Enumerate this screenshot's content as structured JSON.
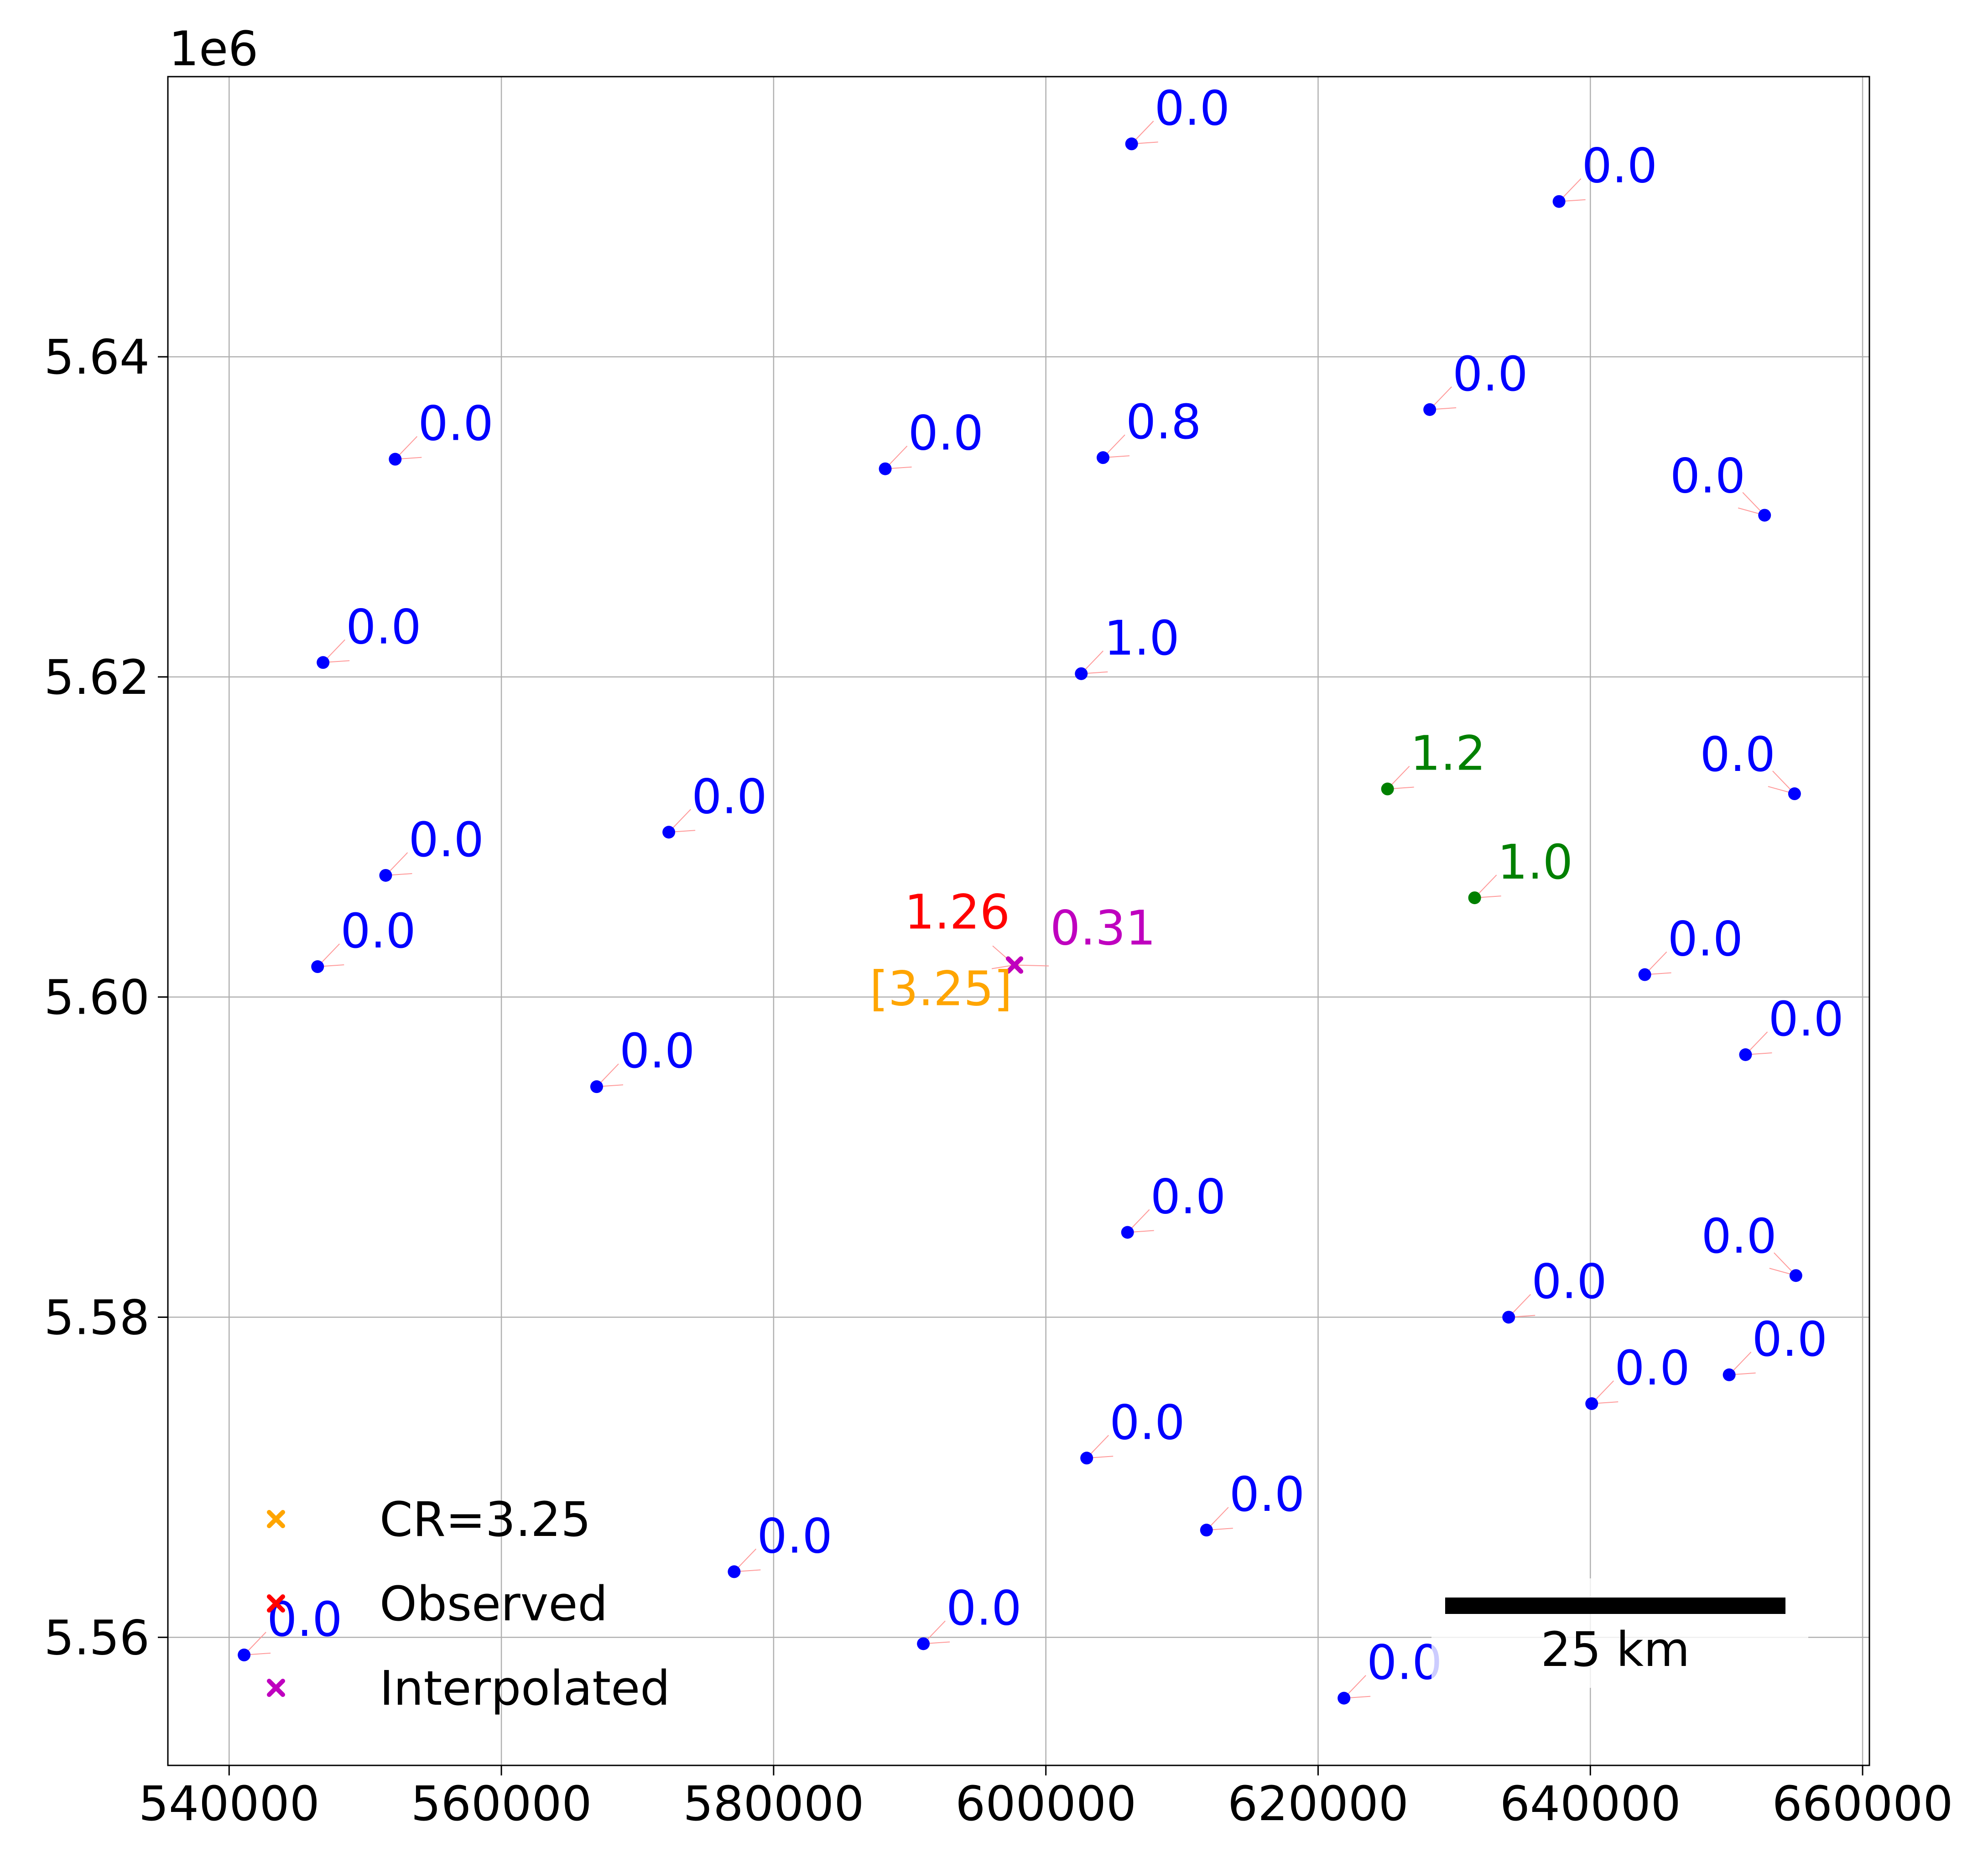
{
  "chart_data": {
    "type": "scatter",
    "title": "",
    "xlabel": "",
    "ylabel": "",
    "y_offset_label": "1e6",
    "xlim": [
      535500,
      660500
    ],
    "ylim": [
      5552000,
      5657500
    ],
    "grid": true,
    "x_ticks": [
      540000,
      560000,
      580000,
      600000,
      620000,
      640000,
      660000
    ],
    "x_tick_labels": [
      "540000",
      "560000",
      "580000",
      "600000",
      "620000",
      "640000",
      "660000"
    ],
    "y_ticks": [
      5560000,
      5580000,
      5600000,
      5620000,
      5640000
    ],
    "y_tick_labels": [
      "5.56",
      "5.58",
      "5.60",
      "5.62",
      "5.64"
    ],
    "colors": {
      "zero_station": "#0000ff",
      "positive_station": "#008000",
      "observed": "#ff0000",
      "interpolated": "#bf00bf",
      "cr": "#ffa500",
      "leader": "#ff9999"
    },
    "stations": [
      {
        "x": 606300,
        "y": 5653300,
        "label": "0.0",
        "color": "#0000ff",
        "side": "right"
      },
      {
        "x": 637700,
        "y": 5649700,
        "label": "0.0",
        "color": "#0000ff",
        "side": "right"
      },
      {
        "x": 628200,
        "y": 5636700,
        "label": "0.0",
        "color": "#0000ff",
        "side": "right"
      },
      {
        "x": 552200,
        "y": 5633600,
        "label": "0.0",
        "color": "#0000ff",
        "side": "right"
      },
      {
        "x": 588200,
        "y": 5633000,
        "label": "0.0",
        "color": "#0000ff",
        "side": "right"
      },
      {
        "x": 604200,
        "y": 5633700,
        "label": "0.8",
        "color": "#0000ff",
        "side": "right"
      },
      {
        "x": 652800,
        "y": 5630100,
        "label": "0.0",
        "color": "#0000ff",
        "side": "left"
      },
      {
        "x": 546900,
        "y": 5620900,
        "label": "0.0",
        "color": "#0000ff",
        "side": "right"
      },
      {
        "x": 602600,
        "y": 5620200,
        "label": "1.0",
        "color": "#0000ff",
        "side": "right"
      },
      {
        "x": 625100,
        "y": 5613000,
        "label": "1.2",
        "color": "#008000",
        "side": "right"
      },
      {
        "x": 655000,
        "y": 5612700,
        "label": "0.0",
        "color": "#0000ff",
        "side": "left"
      },
      {
        "x": 572300,
        "y": 5610300,
        "label": "0.0",
        "color": "#0000ff",
        "side": "right"
      },
      {
        "x": 551500,
        "y": 5607600,
        "label": "0.0",
        "color": "#0000ff",
        "side": "right"
      },
      {
        "x": 631500,
        "y": 5606200,
        "label": "1.0",
        "color": "#008000",
        "side": "right"
      },
      {
        "x": 546500,
        "y": 5601900,
        "label": "0.0",
        "color": "#0000ff",
        "side": "right"
      },
      {
        "x": 644000,
        "y": 5601400,
        "label": "0.0",
        "color": "#0000ff",
        "side": "right"
      },
      {
        "x": 651400,
        "y": 5596400,
        "label": "0.0",
        "color": "#0000ff",
        "side": "right"
      },
      {
        "x": 567000,
        "y": 5594400,
        "label": "0.0",
        "color": "#0000ff",
        "side": "right"
      },
      {
        "x": 606000,
        "y": 5585300,
        "label": "0.0",
        "color": "#0000ff",
        "side": "right"
      },
      {
        "x": 655100,
        "y": 5582600,
        "label": "0.0",
        "color": "#0000ff",
        "side": "left"
      },
      {
        "x": 634000,
        "y": 5580000,
        "label": "0.0",
        "color": "#0000ff",
        "side": "right"
      },
      {
        "x": 650200,
        "y": 5576400,
        "label": "0.0",
        "color": "#0000ff",
        "side": "right"
      },
      {
        "x": 640100,
        "y": 5574600,
        "label": "0.0",
        "color": "#0000ff",
        "side": "right"
      },
      {
        "x": 603000,
        "y": 5571200,
        "label": "0.0",
        "color": "#0000ff",
        "side": "right"
      },
      {
        "x": 611800,
        "y": 5566700,
        "label": "0.0",
        "color": "#0000ff",
        "side": "right"
      },
      {
        "x": 577100,
        "y": 5564100,
        "label": "0.0",
        "color": "#0000ff",
        "side": "right"
      },
      {
        "x": 591000,
        "y": 5559600,
        "label": "0.0",
        "color": "#0000ff",
        "side": "right"
      },
      {
        "x": 541100,
        "y": 5558900,
        "label": "0.0",
        "color": "#0000ff",
        "side": "right"
      },
      {
        "x": 621900,
        "y": 5556200,
        "label": "0.0",
        "color": "#0000ff",
        "side": "right"
      }
    ],
    "target": {
      "x": 597700,
      "y": 5602000,
      "observed_label": "1.26",
      "interpolated_label": "0.31",
      "cr_label": "[3.25]"
    },
    "legend": {
      "placement": "lower-left",
      "entries": [
        {
          "label": "CR=3.25",
          "color": "#ffa500",
          "marker": "x"
        },
        {
          "label": "Observed",
          "color": "#ff0000",
          "marker": "x"
        },
        {
          "label": "Interpolated",
          "color": "#bf00bf",
          "marker": "x"
        }
      ]
    },
    "scalebar": {
      "label": "25 km",
      "length_m": 25000,
      "placement": "lower-right"
    }
  }
}
